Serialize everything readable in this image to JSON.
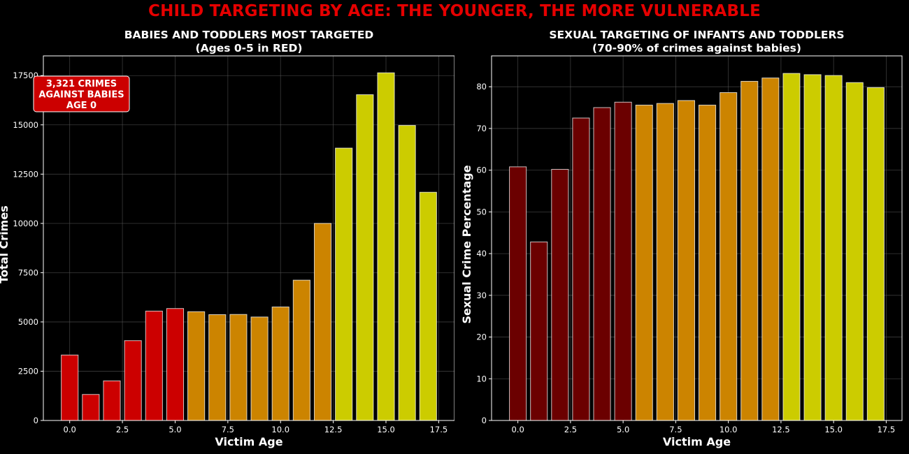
{
  "suptitle": "CHILD TARGETING BY AGE: THE YOUNGER, THE MORE VULNERABLE",
  "colors": {
    "background": "#000000",
    "suptitle": "#e50000",
    "red": "#cc0000",
    "dark_red": "#6b0000",
    "orange": "#cc8400",
    "yellow": "#cccc00",
    "grid": "#555555",
    "annotation_box": "#cc0000"
  },
  "chart_data": [
    {
      "type": "bar",
      "title": "BABIES AND TODDLERS MOST TARGETED",
      "subtitle": "(Ages 0-5 in RED)",
      "xlabel": "Victim Age",
      "ylabel": "Total Crimes",
      "x": [
        0,
        1,
        2,
        3,
        4,
        5,
        6,
        7,
        8,
        9,
        10,
        11,
        12,
        13,
        14,
        15,
        16,
        17
      ],
      "values": [
        3321,
        1320,
        2010,
        4050,
        5550,
        5680,
        5520,
        5370,
        5380,
        5250,
        5760,
        7120,
        10000,
        13820,
        16530,
        17640,
        14970,
        11580
      ],
      "bar_colors": [
        "red",
        "red",
        "red",
        "red",
        "red",
        "red",
        "orange",
        "orange",
        "orange",
        "orange",
        "orange",
        "orange",
        "orange",
        "yellow",
        "yellow",
        "yellow",
        "yellow",
        "yellow"
      ],
      "xlim": [
        -1.25,
        18.25
      ],
      "ylim": [
        0,
        18500
      ],
      "xticks": [
        0,
        2.5,
        5,
        7.5,
        10,
        12.5,
        15,
        17.5
      ],
      "xtick_labels": [
        "0.0",
        "2.5",
        "5.0",
        "7.5",
        "10.0",
        "12.5",
        "15.0",
        "17.5"
      ],
      "yticks": [
        0,
        2500,
        5000,
        7500,
        10000,
        12500,
        15000,
        17500
      ],
      "ytick_labels": [
        "0",
        "2500",
        "5000",
        "7500",
        "10000",
        "12500",
        "15000",
        "17500"
      ],
      "grid": true,
      "annotation": {
        "lines": [
          "3,321 CRIMES",
          "AGAINST BABIES",
          "AGE 0"
        ],
        "placement": "top-left"
      }
    },
    {
      "type": "bar",
      "title": "SEXUAL TARGETING OF INFANTS AND TODDLERS",
      "subtitle": "(70-90% of crimes against babies)",
      "xlabel": "Victim Age",
      "ylabel": "Sexual Crime Percentage",
      "x": [
        0,
        1,
        2,
        3,
        4,
        5,
        6,
        7,
        8,
        9,
        10,
        11,
        12,
        13,
        14,
        15,
        16,
        17
      ],
      "values": [
        60.8,
        42.8,
        60.2,
        72.5,
        75.0,
        76.3,
        75.6,
        76.0,
        76.7,
        75.6,
        78.6,
        81.3,
        82.1,
        83.2,
        82.9,
        82.7,
        81.0,
        79.8
      ],
      "bar_colors": [
        "dark_red",
        "dark_red",
        "dark_red",
        "dark_red",
        "dark_red",
        "dark_red",
        "orange",
        "orange",
        "orange",
        "orange",
        "orange",
        "orange",
        "orange",
        "yellow",
        "yellow",
        "yellow",
        "yellow",
        "yellow"
      ],
      "xlim": [
        -1.25,
        18.25
      ],
      "ylim": [
        0,
        87.4
      ],
      "xticks": [
        0,
        2.5,
        5,
        7.5,
        10,
        12.5,
        15,
        17.5
      ],
      "xtick_labels": [
        "0.0",
        "2.5",
        "5.0",
        "7.5",
        "10.0",
        "12.5",
        "15.0",
        "17.5"
      ],
      "yticks": [
        0,
        10,
        20,
        30,
        40,
        50,
        60,
        70,
        80
      ],
      "ytick_labels": [
        "0",
        "10",
        "20",
        "30",
        "40",
        "50",
        "60",
        "70",
        "80"
      ],
      "grid": true
    }
  ]
}
